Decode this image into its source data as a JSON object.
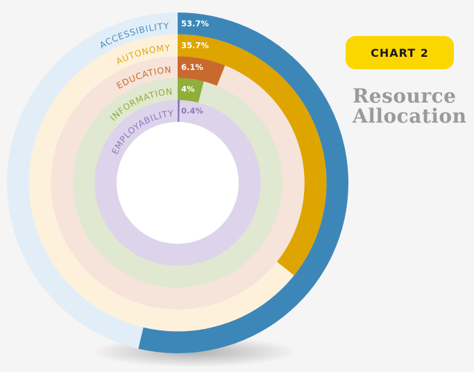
{
  "badge": {
    "label": "CHART 2"
  },
  "title": {
    "line1": "Resource",
    "line2": "Allocation"
  },
  "chart_data": {
    "type": "radial-bar",
    "max_percent": 100,
    "series": [
      {
        "name": "ACCESSIBILITY",
        "value": 53.7,
        "label": "53.7%",
        "color": "#3d87b8",
        "track_color": "#e2eef7",
        "text_color": "#4a8fc0"
      },
      {
        "name": "AUTONOMY",
        "value": 35.7,
        "label": "35.7%",
        "color": "#dea400",
        "track_color": "#fdf1dc",
        "text_color": "#e0a810"
      },
      {
        "name": "EDUCATION",
        "value": 6.1,
        "label": "6.1%",
        "color": "#c86a2e",
        "track_color": "#f6e4db",
        "text_color": "#c86a2e"
      },
      {
        "name": "INFORMATION",
        "value": 4,
        "label": "4%",
        "color": "#8fae3a",
        "track_color": "#e1e8d1",
        "text_color": "#8fae3a"
      },
      {
        "name": "EMPLOYABILITY",
        "value": 0.4,
        "label": "0.4%",
        "color": "#8c79bd",
        "track_color": "#ddd3eb",
        "text_color": "#8c79bd"
      }
    ]
  }
}
